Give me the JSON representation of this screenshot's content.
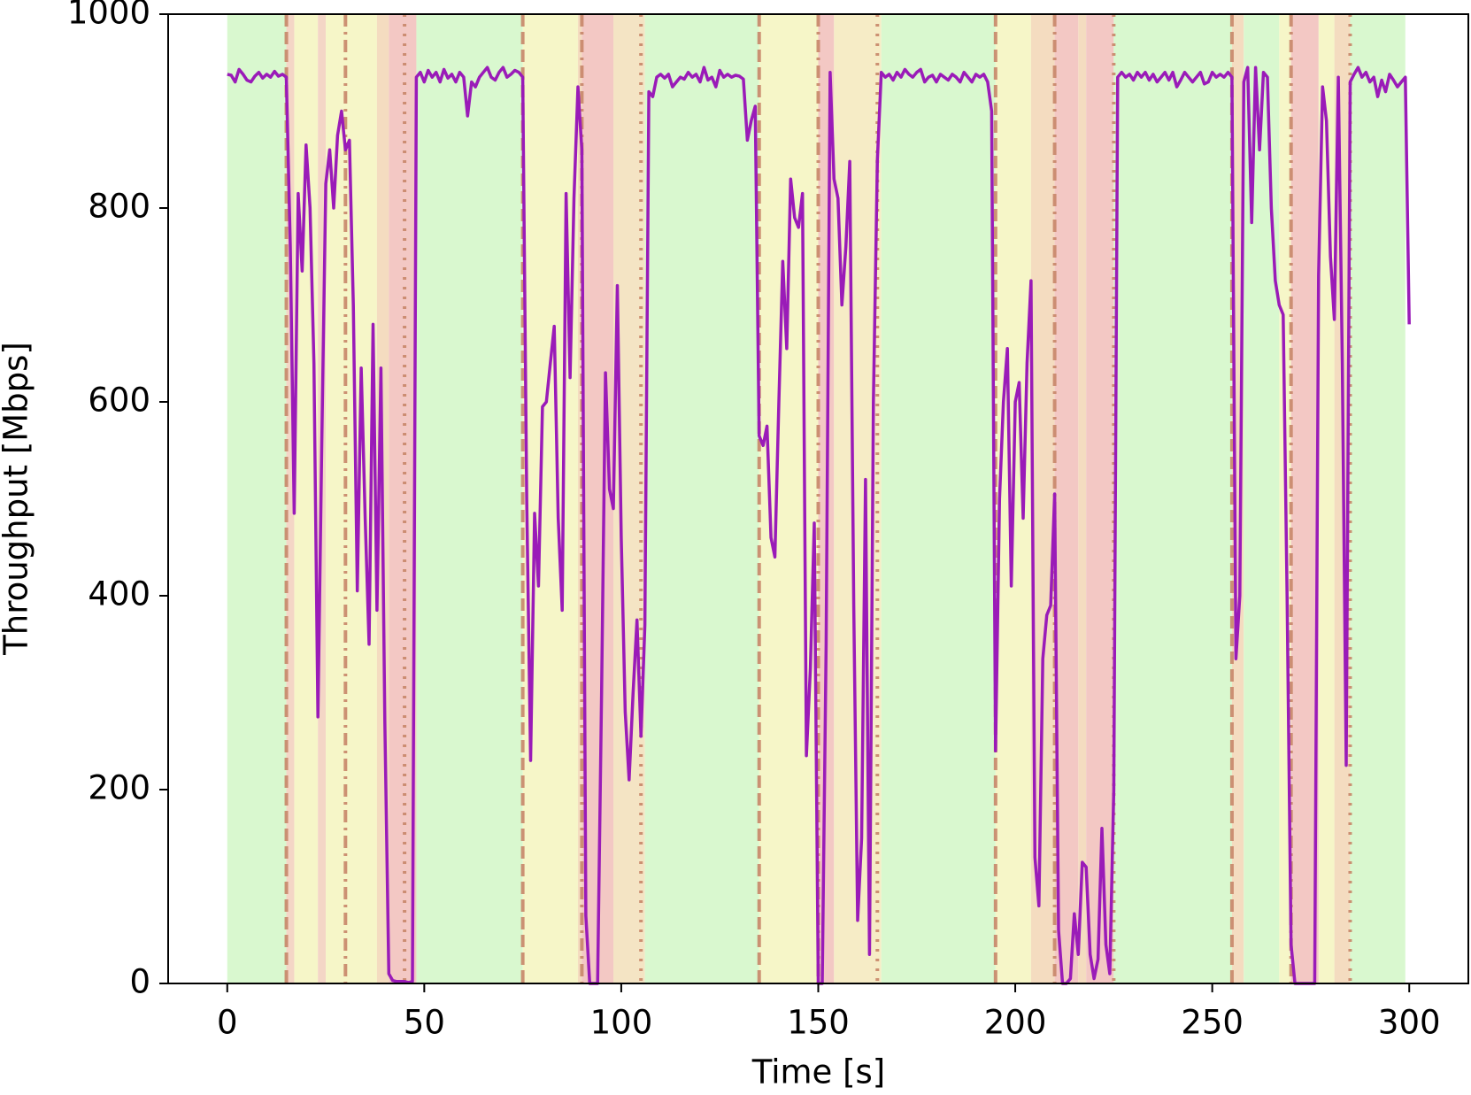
{
  "chart_data": {
    "type": "line",
    "xlabel": "Time [s]",
    "ylabel": "Throughput [Mbps]",
    "xlim": [
      -15,
      315
    ],
    "ylim": [
      0,
      1000
    ],
    "xticks": [
      0,
      50,
      100,
      150,
      200,
      250,
      300
    ],
    "yticks": [
      0,
      200,
      400,
      600,
      800,
      1000
    ],
    "grid": false,
    "bands": [
      {
        "start": 0,
        "end": 15,
        "color": "#d9f8cf"
      },
      {
        "start": 15,
        "end": 17,
        "color": "#f4d6c6"
      },
      {
        "start": 17,
        "end": 23,
        "color": "#f6f6c8"
      },
      {
        "start": 23,
        "end": 25,
        "color": "#f4d6c6"
      },
      {
        "start": 25,
        "end": 38,
        "color": "#f6f6c8"
      },
      {
        "start": 38,
        "end": 41,
        "color": "#f4dcc0"
      },
      {
        "start": 41,
        "end": 48,
        "color": "#f3c8c4"
      },
      {
        "start": 48,
        "end": 75,
        "color": "#d9f8cf"
      },
      {
        "start": 75,
        "end": 89,
        "color": "#f6f6c8"
      },
      {
        "start": 89,
        "end": 90,
        "color": "#f4dcc0"
      },
      {
        "start": 90,
        "end": 98,
        "color": "#f3c8c4"
      },
      {
        "start": 98,
        "end": 106,
        "color": "#f4e4c4"
      },
      {
        "start": 106,
        "end": 135,
        "color": "#d9f8cf"
      },
      {
        "start": 135,
        "end": 150,
        "color": "#f6f6c8"
      },
      {
        "start": 150,
        "end": 154,
        "color": "#f3c8c4"
      },
      {
        "start": 154,
        "end": 166,
        "color": "#f6ecc6"
      },
      {
        "start": 166,
        "end": 195,
        "color": "#d9f8cf"
      },
      {
        "start": 195,
        "end": 204,
        "color": "#f6f6c8"
      },
      {
        "start": 204,
        "end": 210,
        "color": "#f4dcc0"
      },
      {
        "start": 210,
        "end": 216,
        "color": "#f3c8c4"
      },
      {
        "start": 216,
        "end": 218,
        "color": "#f4dcc0"
      },
      {
        "start": 218,
        "end": 225,
        "color": "#f3c8c4"
      },
      {
        "start": 225,
        "end": 255,
        "color": "#d9f8cf"
      },
      {
        "start": 255,
        "end": 258,
        "color": "#f4dcc0"
      },
      {
        "start": 258,
        "end": 267,
        "color": "#d9f8cf"
      },
      {
        "start": 267,
        "end": 270,
        "color": "#f6f6c8"
      },
      {
        "start": 270,
        "end": 277,
        "color": "#f3c8c4"
      },
      {
        "start": 277,
        "end": 281,
        "color": "#f6f6c8"
      },
      {
        "start": 281,
        "end": 285,
        "color": "#f4dcc0"
      },
      {
        "start": 285,
        "end": 299,
        "color": "#d9f8cf"
      }
    ],
    "vline_color": "#c8876a",
    "vlines": [
      {
        "x": 15,
        "style": "dashed"
      },
      {
        "x": 30,
        "style": "dashdot"
      },
      {
        "x": 45,
        "style": "dotted"
      },
      {
        "x": 75,
        "style": "dashed"
      },
      {
        "x": 90,
        "style": "dashdot"
      },
      {
        "x": 105,
        "style": "dotted"
      },
      {
        "x": 135,
        "style": "dashed"
      },
      {
        "x": 150,
        "style": "dashdot"
      },
      {
        "x": 165,
        "style": "dotted"
      },
      {
        "x": 195,
        "style": "dashed"
      },
      {
        "x": 210,
        "style": "dashdot"
      },
      {
        "x": 225,
        "style": "dotted"
      },
      {
        "x": 255,
        "style": "dashed"
      },
      {
        "x": 270,
        "style": "dashdot"
      },
      {
        "x": 285,
        "style": "dotted"
      }
    ],
    "x": [
      0,
      1,
      2,
      3,
      4,
      5,
      6,
      7,
      8,
      9,
      10,
      11,
      12,
      13,
      14,
      15,
      16,
      17,
      18,
      19,
      20,
      21,
      22,
      23,
      24,
      25,
      26,
      27,
      28,
      29,
      30,
      31,
      32,
      33,
      34,
      35,
      36,
      37,
      38,
      39,
      40,
      41,
      42,
      43,
      44,
      45,
      46,
      47,
      48,
      49,
      50,
      51,
      52,
      53,
      54,
      55,
      56,
      57,
      58,
      59,
      60,
      61,
      62,
      63,
      64,
      65,
      66,
      67,
      68,
      69,
      70,
      71,
      72,
      73,
      74,
      75,
      76,
      77,
      78,
      79,
      80,
      81,
      82,
      83,
      84,
      85,
      86,
      87,
      88,
      89,
      90,
      91,
      92,
      93,
      94,
      95,
      96,
      97,
      98,
      99,
      100,
      101,
      102,
      103,
      104,
      105,
      106,
      107,
      108,
      109,
      110,
      111,
      112,
      113,
      114,
      115,
      116,
      117,
      118,
      119,
      120,
      121,
      122,
      123,
      124,
      125,
      126,
      127,
      128,
      129,
      130,
      131,
      132,
      133,
      134,
      135,
      136,
      137,
      138,
      139,
      140,
      141,
      142,
      143,
      144,
      145,
      146,
      147,
      148,
      149,
      150,
      151,
      152,
      153,
      154,
      155,
      156,
      157,
      158,
      159,
      160,
      161,
      162,
      163,
      164,
      165,
      166,
      167,
      168,
      169,
      170,
      171,
      172,
      173,
      174,
      175,
      176,
      177,
      178,
      179,
      180,
      181,
      182,
      183,
      184,
      185,
      186,
      187,
      188,
      189,
      190,
      191,
      192,
      193,
      194,
      195,
      196,
      197,
      198,
      199,
      200,
      201,
      202,
      203,
      204,
      205,
      206,
      207,
      208,
      209,
      210,
      211,
      212,
      213,
      214,
      215,
      216,
      217,
      218,
      219,
      220,
      221,
      222,
      223,
      224,
      225,
      226,
      227,
      228,
      229,
      230,
      231,
      232,
      233,
      234,
      235,
      236,
      237,
      238,
      239,
      240,
      241,
      242,
      243,
      244,
      245,
      246,
      247,
      248,
      249,
      250,
      251,
      252,
      253,
      254,
      255,
      256,
      257,
      258,
      259,
      260,
      261,
      262,
      263,
      264,
      265,
      266,
      267,
      268,
      269,
      270,
      271,
      272,
      273,
      274,
      275,
      276,
      277,
      278,
      279,
      280,
      281,
      282,
      283,
      284,
      285,
      286,
      287,
      288,
      289,
      290,
      291,
      292,
      293,
      294,
      295,
      296,
      297,
      298,
      299,
      300
    ],
    "series": [
      {
        "color": "#9a1bb8",
        "values": [
          938,
          937,
          930,
          943,
          938,
          932,
          930,
          936,
          940,
          934,
          938,
          935,
          941,
          936,
          938,
          935,
          760,
          485,
          815,
          735,
          865,
          800,
          640,
          275,
          560,
          825,
          860,
          800,
          875,
          900,
          860,
          870,
          700,
          405,
          635,
          480,
          350,
          680,
          385,
          635,
          270,
          10,
          3,
          2,
          2,
          2,
          1,
          2,
          935,
          940,
          930,
          942,
          935,
          940,
          930,
          943,
          934,
          938,
          930,
          940,
          935,
          895,
          930,
          925,
          935,
          940,
          945,
          935,
          932,
          940,
          945,
          935,
          938,
          942,
          940,
          935,
          500,
          230,
          485,
          410,
          595,
          600,
          640,
          678,
          480,
          385,
          815,
          625,
          810,
          925,
          860,
          70,
          0,
          0,
          0,
          300,
          630,
          510,
          490,
          720,
          460,
          280,
          210,
          300,
          375,
          255,
          370,
          920,
          915,
          935,
          938,
          934,
          938,
          925,
          930,
          935,
          933,
          940,
          935,
          938,
          930,
          945,
          932,
          935,
          925,
          942,
          935,
          938,
          935,
          937,
          936,
          933,
          870,
          890,
          905,
          565,
          555,
          575,
          460,
          440,
          600,
          745,
          655,
          830,
          790,
          780,
          815,
          235,
          325,
          475,
          0,
          0,
          350,
          940,
          830,
          810,
          700,
          760,
          848,
          390,
          65,
          150,
          520,
          30,
          600,
          850,
          940,
          935,
          938,
          932,
          940,
          935,
          943,
          938,
          935,
          940,
          943,
          930,
          935,
          937,
          930,
          938,
          935,
          932,
          938,
          935,
          930,
          940,
          935,
          930,
          938,
          935,
          938,
          930,
          900,
          240,
          500,
          600,
          655,
          410,
          600,
          620,
          480,
          640,
          725,
          130,
          80,
          335,
          380,
          390,
          505,
          55,
          0,
          0,
          5,
          72,
          30,
          125,
          120,
          30,
          5,
          25,
          160,
          40,
          10,
          200,
          935,
          940,
          935,
          938,
          932,
          940,
          935,
          940,
          932,
          938,
          930,
          935,
          940,
          932,
          940,
          925,
          932,
          940,
          935,
          930,
          935,
          940,
          928,
          930,
          940,
          935,
          938,
          935,
          940,
          935,
          335,
          400,
          930,
          945,
          785,
          945,
          860,
          940,
          935,
          800,
          725,
          700,
          690,
          400,
          40,
          0,
          0,
          0,
          0,
          0,
          0,
          730,
          925,
          890,
          750,
          685,
          935,
          640,
          225,
          930,
          938,
          945,
          935,
          940,
          930,
          935,
          915,
          932,
          920,
          938,
          932,
          925,
          930,
          935,
          680
        ]
      }
    ]
  }
}
